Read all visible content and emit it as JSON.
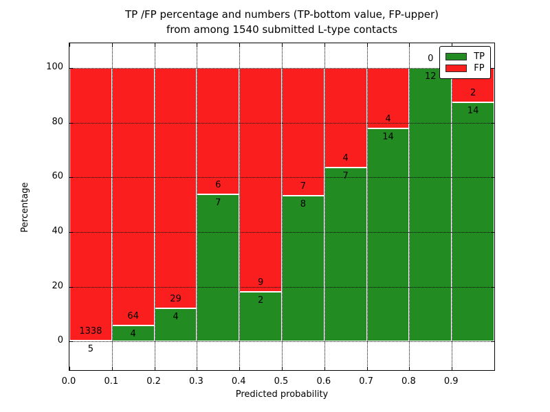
{
  "chart_data": {
    "type": "bar",
    "stacked": true,
    "normalized_to_percent": true,
    "title_lines": [
      "TP /FP percentage and numbers (TP-bottom value, FP-upper)",
      "from among 1540 submitted L-type contacts"
    ],
    "xlabel": "Predicted probability",
    "ylabel": "Percentage",
    "total_contacts": 1540,
    "bins": [
      "0.0-0.1",
      "0.1-0.2",
      "0.2-0.3",
      "0.3-0.4",
      "0.4-0.5",
      "0.5-0.6",
      "0.6-0.7",
      "0.7-0.8",
      "0.8-0.9",
      "0.9-1.0"
    ],
    "series": [
      {
        "name": "TP",
        "color": "#228b22",
        "counts": [
          5,
          4,
          4,
          7,
          2,
          8,
          7,
          14,
          12,
          14
        ]
      },
      {
        "name": "FP",
        "color": "#fb1e1e",
        "counts": [
          1338,
          64,
          29,
          6,
          9,
          7,
          4,
          4,
          0,
          2
        ]
      }
    ],
    "tp_percentages": [
      0.37,
      5.88,
      12.12,
      53.85,
      18.18,
      53.33,
      63.64,
      77.78,
      100.0,
      87.5
    ],
    "x_ticks": [
      "0.0",
      "0.1",
      "0.2",
      "0.3",
      "0.4",
      "0.5",
      "0.6",
      "0.7",
      "0.8",
      "0.9"
    ],
    "y_ticks": [
      "0",
      "20",
      "40",
      "60",
      "80",
      "100"
    ],
    "xlim": [
      0.0,
      1.0
    ],
    "ylim": [
      -10.5,
      109
    ],
    "grid": "dotted black, drawn above bars",
    "legend": {
      "position": "upper right",
      "entries": [
        {
          "label": "TP",
          "color": "#228b22"
        },
        {
          "label": "FP",
          "color": "#fb1e1e"
        }
      ]
    }
  }
}
